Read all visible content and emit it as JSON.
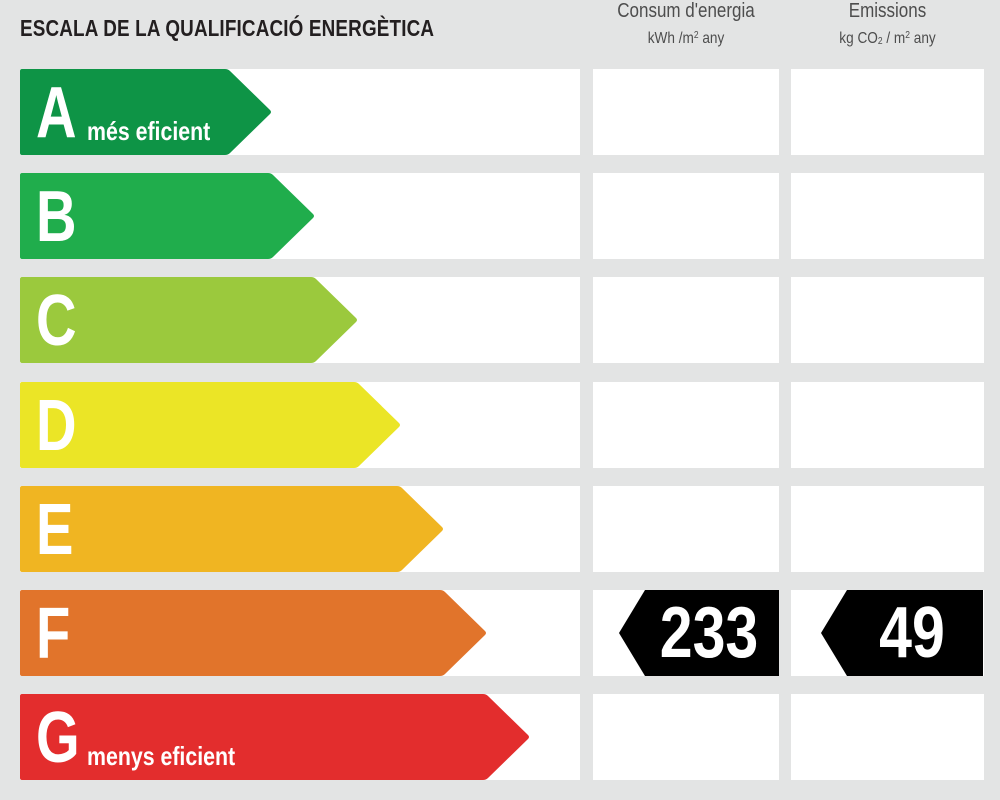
{
  "title": "ESCALA DE LA QUALIFICACIÓ ENERGÈTICA",
  "columns": {
    "consum": {
      "label": "Consum d'energia",
      "unit_prefix": "kWh /m",
      "unit_exp": "2",
      "unit_suffix": " any"
    },
    "emissions": {
      "label": "Emissions",
      "unit_prefix": "kg CO",
      "unit_sub": "2",
      "unit_mid": " / m",
      "unit_exp": "2",
      "unit_suffix": " any"
    }
  },
  "ratings": [
    {
      "letter": "A",
      "label": "més eficient",
      "color": "#0e9446"
    },
    {
      "letter": "B",
      "label": "",
      "color": "#20ad4c"
    },
    {
      "letter": "C",
      "label": "",
      "color": "#9bc93d"
    },
    {
      "letter": "D",
      "label": "",
      "color": "#ebe526"
    },
    {
      "letter": "E",
      "label": "",
      "color": "#f0b522"
    },
    {
      "letter": "F",
      "label": "",
      "color": "#e1742b"
    },
    {
      "letter": "G",
      "label": "menys eficient",
      "color": "#e32d2d"
    }
  ],
  "current": {
    "rating": "F",
    "consum_value": "233",
    "emissions_value": "49"
  }
}
